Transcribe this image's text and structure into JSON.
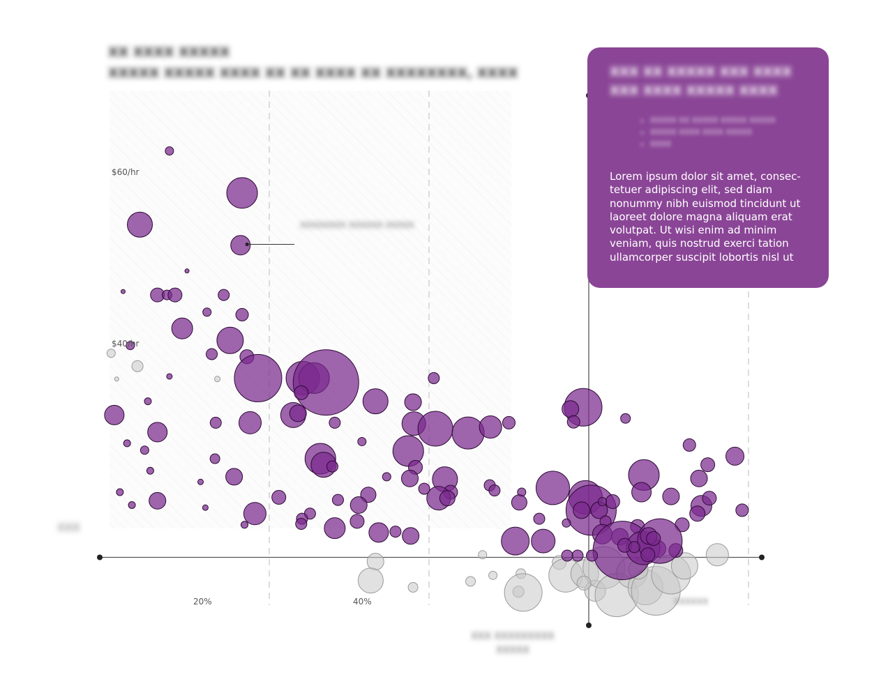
{
  "chart_data": {
    "type": "scatter",
    "title": "XX XXXX XXXXX",
    "subtitle": "XXXXX XXXXX XXXX XX XX XXXX XX XXXXXXXX, XXXX",
    "xlabel": "XXX XXXXXXXXX\nXXXXX",
    "ylabel": "",
    "y_ticks": [
      {
        "value": 60,
        "label": "$60/hr"
      },
      {
        "value": 40,
        "label": "$40/hr"
      }
    ],
    "x_ticks": [
      {
        "value": 20,
        "label": "20%"
      },
      {
        "value": 40,
        "label": "40%"
      },
      {
        "value": 80,
        "label": "XXXXXX"
      }
    ],
    "zero_label": "XXX",
    "xlim": [
      0,
      80
    ],
    "ylim": [
      10,
      65
    ],
    "reference_x": 60,
    "reference_y": 15,
    "colors": {
      "highlight": "#7a2a8e",
      "other": "#c8c8c8",
      "box": "#8a4596"
    },
    "annotation": {
      "x": 16,
      "y": 51.5,
      "text": "XXXXXXXX XXXXXX XXXXX"
    },
    "series": [
      {
        "name": "",
        "color": "#7a2a8e",
        "points": [
          {
            "x": 7.5,
            "y": 62.4,
            "s": 6
          },
          {
            "x": 16.6,
            "y": 57.5,
            "s": 22
          },
          {
            "x": 3.8,
            "y": 53.8,
            "s": 18
          },
          {
            "x": 16.4,
            "y": 51.4,
            "s": 14
          },
          {
            "x": 9.7,
            "y": 48.4,
            "s": 3
          },
          {
            "x": 1.7,
            "y": 46.0,
            "s": 3
          },
          {
            "x": 6.0,
            "y": 45.6,
            "s": 10
          },
          {
            "x": 7.2,
            "y": 45.6,
            "s": 7
          },
          {
            "x": 8.2,
            "y": 45.6,
            "s": 10
          },
          {
            "x": 14.3,
            "y": 45.6,
            "s": 8
          },
          {
            "x": 12.2,
            "y": 43.6,
            "s": 6
          },
          {
            "x": 16.6,
            "y": 43.3,
            "s": 9
          },
          {
            "x": 9.1,
            "y": 41.7,
            "s": 15
          },
          {
            "x": 15.1,
            "y": 40.3,
            "s": 19
          },
          {
            "x": 2.6,
            "y": 39.7,
            "s": 6
          },
          {
            "x": 12.8,
            "y": 38.7,
            "s": 8
          },
          {
            "x": 17.2,
            "y": 38.4,
            "s": 10
          },
          {
            "x": 18.6,
            "y": 35.9,
            "s": 34
          },
          {
            "x": 24.2,
            "y": 35.9,
            "s": 24
          },
          {
            "x": 25.6,
            "y": 35.9,
            "s": 22
          },
          {
            "x": 27.1,
            "y": 35.4,
            "s": 47
          },
          {
            "x": 7.5,
            "y": 36.1,
            "s": 4
          },
          {
            "x": 24.0,
            "y": 34.2,
            "s": 10
          },
          {
            "x": 40.6,
            "y": 35.9,
            "s": 8
          },
          {
            "x": 4.8,
            "y": 33.2,
            "s": 5
          },
          {
            "x": 33.3,
            "y": 33.2,
            "s": 18
          },
          {
            "x": 38.0,
            "y": 33.1,
            "s": 12
          },
          {
            "x": 59.3,
            "y": 32.5,
            "s": 27
          },
          {
            "x": 57.7,
            "y": 32.3,
            "s": 12
          },
          {
            "x": 0.6,
            "y": 31.6,
            "s": 14
          },
          {
            "x": 23.0,
            "y": 31.6,
            "s": 18
          },
          {
            "x": 23.6,
            "y": 31.8,
            "s": 12
          },
          {
            "x": 13.3,
            "y": 30.7,
            "s": 8
          },
          {
            "x": 17.6,
            "y": 30.7,
            "s": 16
          },
          {
            "x": 28.2,
            "y": 30.7,
            "s": 8
          },
          {
            "x": 38.1,
            "y": 30.6,
            "s": 17
          },
          {
            "x": 40.8,
            "y": 30.0,
            "s": 25
          },
          {
            "x": 44.9,
            "y": 29.5,
            "s": 23
          },
          {
            "x": 47.7,
            "y": 30.2,
            "s": 16
          },
          {
            "x": 50.0,
            "y": 30.7,
            "s": 9
          },
          {
            "x": 58.1,
            "y": 30.8,
            "s": 9
          },
          {
            "x": 6.0,
            "y": 29.6,
            "s": 14
          },
          {
            "x": 2.2,
            "y": 28.3,
            "s": 5
          },
          {
            "x": 31.6,
            "y": 28.5,
            "s": 6
          },
          {
            "x": 37.4,
            "y": 27.4,
            "s": 22
          },
          {
            "x": 4.4,
            "y": 27.5,
            "s": 6
          },
          {
            "x": 26.4,
            "y": 26.5,
            "s": 22
          },
          {
            "x": 13.2,
            "y": 26.5,
            "s": 7
          },
          {
            "x": 26.8,
            "y": 25.8,
            "s": 18
          },
          {
            "x": 27.9,
            "y": 25.6,
            "s": 8
          },
          {
            "x": 38.3,
            "y": 25.5,
            "s": 10
          },
          {
            "x": 5.1,
            "y": 25.1,
            "s": 5
          },
          {
            "x": 15.6,
            "y": 24.4,
            "s": 12
          },
          {
            "x": 37.6,
            "y": 24.2,
            "s": 12
          },
          {
            "x": 34.7,
            "y": 24.4,
            "s": 6
          },
          {
            "x": 42.0,
            "y": 24.1,
            "s": 18
          },
          {
            "x": 11.4,
            "y": 23.8,
            "s": 4
          },
          {
            "x": 39.4,
            "y": 23.0,
            "s": 8
          },
          {
            "x": 42.7,
            "y": 22.6,
            "s": 10
          },
          {
            "x": 32.4,
            "y": 22.3,
            "s": 11
          },
          {
            "x": 1.3,
            "y": 22.6,
            "s": 5
          },
          {
            "x": 41.2,
            "y": 21.9,
            "s": 17
          },
          {
            "x": 42.3,
            "y": 21.9,
            "s": 11
          },
          {
            "x": 47.6,
            "y": 23.4,
            "s": 8
          },
          {
            "x": 48.2,
            "y": 22.8,
            "s": 8
          },
          {
            "x": 51.6,
            "y": 22.6,
            "s": 6
          },
          {
            "x": 55.5,
            "y": 23.1,
            "s": 24
          },
          {
            "x": 51.3,
            "y": 21.4,
            "s": 11
          },
          {
            "x": 59.6,
            "y": 22.0,
            "s": 24
          },
          {
            "x": 60.3,
            "y": 20.5,
            "s": 36
          },
          {
            "x": 59.1,
            "y": 20.5,
            "s": 12
          },
          {
            "x": 53.8,
            "y": 19.5,
            "s": 8
          },
          {
            "x": 28.6,
            "y": 21.7,
            "s": 8
          },
          {
            "x": 25.1,
            "y": 20.1,
            "s": 8
          },
          {
            "x": 21.2,
            "y": 22.0,
            "s": 10
          },
          {
            "x": 31.2,
            "y": 21.1,
            "s": 12
          },
          {
            "x": 18.2,
            "y": 20.1,
            "s": 16
          },
          {
            "x": 6.0,
            "y": 21.6,
            "s": 12
          },
          {
            "x": 2.8,
            "y": 21.1,
            "s": 5
          },
          {
            "x": 12.0,
            "y": 20.8,
            "s": 4
          },
          {
            "x": 16.9,
            "y": 18.8,
            "s": 5
          },
          {
            "x": 24.1,
            "y": 19.5,
            "s": 8
          },
          {
            "x": 31.0,
            "y": 19.2,
            "s": 10
          },
          {
            "x": 24.0,
            "y": 18.9,
            "s": 8
          },
          {
            "x": 28.2,
            "y": 18.4,
            "s": 15
          },
          {
            "x": 35.8,
            "y": 18.0,
            "s": 8
          },
          {
            "x": 37.7,
            "y": 17.5,
            "s": 12
          },
          {
            "x": 33.7,
            "y": 17.9,
            "s": 14
          },
          {
            "x": 50.8,
            "y": 16.9,
            "s": 20
          },
          {
            "x": 54.3,
            "y": 16.9,
            "s": 17
          },
          {
            "x": 68.6,
            "y": 16.0,
            "s": 12
          },
          {
            "x": 70.9,
            "y": 15.8,
            "s": 10
          },
          {
            "x": 66.1,
            "y": 18.6,
            "s": 10
          },
          {
            "x": 71.7,
            "y": 18.8,
            "s": 10
          },
          {
            "x": 79.2,
            "y": 20.5,
            "s": 9
          },
          {
            "x": 74.1,
            "y": 21.0,
            "s": 15
          },
          {
            "x": 73.6,
            "y": 20.1,
            "s": 11
          },
          {
            "x": 75.1,
            "y": 21.9,
            "s": 10
          },
          {
            "x": 70.3,
            "y": 22.1,
            "s": 12
          },
          {
            "x": 73.8,
            "y": 24.2,
            "s": 12
          },
          {
            "x": 72.6,
            "y": 28.1,
            "s": 9
          },
          {
            "x": 78.3,
            "y": 26.8,
            "s": 13
          },
          {
            "x": 74.9,
            "y": 25.8,
            "s": 10
          },
          {
            "x": 66.9,
            "y": 24.6,
            "s": 22
          },
          {
            "x": 66.6,
            "y": 22.6,
            "s": 14
          },
          {
            "x": 63.0,
            "y": 21.5,
            "s": 10
          },
          {
            "x": 61.3,
            "y": 20.5,
            "s": 12
          },
          {
            "x": 62.1,
            "y": 19.2,
            "s": 8
          },
          {
            "x": 61.7,
            "y": 17.7,
            "s": 14
          },
          {
            "x": 63.9,
            "y": 17.4,
            "s": 12
          },
          {
            "x": 64.2,
            "y": 15.8,
            "s": 42
          },
          {
            "x": 66.8,
            "y": 16.1,
            "s": 24
          },
          {
            "x": 68.9,
            "y": 16.9,
            "s": 32
          },
          {
            "x": 64.5,
            "y": 16.4,
            "s": 10
          },
          {
            "x": 58.6,
            "y": 15.2,
            "s": 8
          },
          {
            "x": 57.3,
            "y": 15.2,
            "s": 8
          },
          {
            "x": 60.4,
            "y": 15.2,
            "s": 8
          },
          {
            "x": 67.5,
            "y": 17.5,
            "s": 12
          },
          {
            "x": 65.7,
            "y": 16.2,
            "s": 8
          },
          {
            "x": 67.4,
            "y": 15.3,
            "s": 10
          },
          {
            "x": 68.1,
            "y": 17.2,
            "s": 10
          },
          {
            "x": 64.6,
            "y": 31.2,
            "s": 7
          },
          {
            "x": 61.7,
            "y": 21.5,
            "s": 6
          },
          {
            "x": 57.2,
            "y": 19.0,
            "s": 6
          }
        ]
      },
      {
        "name": "",
        "color": "#c8c8c8",
        "points": [
          {
            "x": 0.2,
            "y": 38.8,
            "s": 6
          },
          {
            "x": 3.5,
            "y": 37.3,
            "s": 8
          },
          {
            "x": 0.9,
            "y": 35.8,
            "s": 3
          },
          {
            "x": 13.5,
            "y": 35.8,
            "s": 4
          },
          {
            "x": 33.3,
            "y": 14.5,
            "s": 12
          },
          {
            "x": 32.7,
            "y": 12.3,
            "s": 18
          },
          {
            "x": 38.0,
            "y": 11.5,
            "s": 7
          },
          {
            "x": 46.7,
            "y": 15.3,
            "s": 6
          },
          {
            "x": 48.0,
            "y": 12.9,
            "s": 6
          },
          {
            "x": 51.5,
            "y": 13.1,
            "s": 7
          },
          {
            "x": 51.2,
            "y": 11.0,
            "s": 8
          },
          {
            "x": 51.8,
            "y": 10.9,
            "s": 27
          },
          {
            "x": 56.3,
            "y": 14.4,
            "s": 10
          },
          {
            "x": 57.1,
            "y": 12.9,
            "s": 24
          },
          {
            "x": 59.5,
            "y": 13.1,
            "s": 20
          },
          {
            "x": 60.8,
            "y": 11.1,
            "s": 15
          },
          {
            "x": 61.9,
            "y": 13.8,
            "s": 30
          },
          {
            "x": 63.5,
            "y": 10.6,
            "s": 31
          },
          {
            "x": 65.4,
            "y": 13.2,
            "s": 22
          },
          {
            "x": 67.1,
            "y": 11.5,
            "s": 25
          },
          {
            "x": 68.4,
            "y": 11.1,
            "s": 35
          },
          {
            "x": 70.3,
            "y": 13.0,
            "s": 28
          },
          {
            "x": 72.0,
            "y": 14.0,
            "s": 19
          },
          {
            "x": 76.1,
            "y": 15.3,
            "s": 16
          },
          {
            "x": 66.2,
            "y": 13.6,
            "s": 14
          },
          {
            "x": 59.4,
            "y": 12.0,
            "s": 10
          },
          {
            "x": 45.2,
            "y": 12.2,
            "s": 7
          }
        ]
      }
    ]
  },
  "info_box": {
    "heading": "XXX XX XXXXX XXX XXXX XXX XXXX XXXXX XXXX",
    "list": [
      "XXXXX XX XXXXX XXXXX XXXXX",
      "XXXXX XXXX XXXX XXXXX",
      "XXXX"
    ],
    "body": "Lorem ipsum dolor sit amet, consec-tetuer adipiscing elit, sed diam nonummy nibh euismod tincidunt ut laoreet dolore magna aliquam erat volutpat. Ut wisi enim ad minim veniam, quis nostrud exerci tation ullamcorper suscipit lobortis nisl ut"
  }
}
